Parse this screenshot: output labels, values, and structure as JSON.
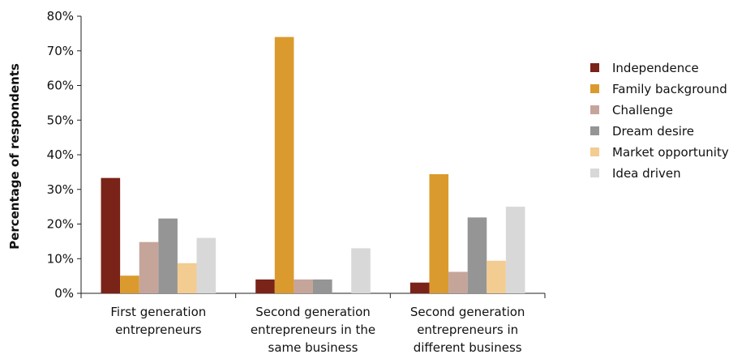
{
  "chart_data": {
    "type": "bar",
    "title": "",
    "xlabel": "",
    "ylabel": "Percentage of respondents",
    "ylim": [
      0,
      80
    ],
    "yticks": [
      "0%",
      "10%",
      "20%",
      "30%",
      "40%",
      "50%",
      "60%",
      "70%",
      "80%"
    ],
    "ytick_values": [
      0,
      10,
      20,
      30,
      40,
      50,
      60,
      70,
      80
    ],
    "grid": false,
    "legend_position": "right",
    "categories": [
      [
        "First generation",
        "entrepreneurs"
      ],
      [
        "Second generation",
        "entrepreneurs in the",
        "same business"
      ],
      [
        "Second generation",
        "entrepreneurs in",
        "different business"
      ]
    ],
    "series": [
      {
        "name": "Independence",
        "color": "#7a2318",
        "values": [
          33.3,
          4.0,
          3.1
        ]
      },
      {
        "name": "Family background",
        "color": "#db9a2d",
        "values": [
          5.1,
          74.0,
          34.4
        ]
      },
      {
        "name": "Challenge",
        "color": "#c5a59a",
        "values": [
          14.8,
          4.0,
          6.2
        ]
      },
      {
        "name": "Dream desire",
        "color": "#959595",
        "values": [
          21.6,
          4.0,
          21.9
        ]
      },
      {
        "name": "Market opportunity",
        "color": "#f3cc92",
        "values": [
          8.7,
          0,
          9.4
        ]
      },
      {
        "name": "Idea driven",
        "color": "#d8d8d8",
        "values": [
          16.0,
          13.0,
          25.0
        ]
      }
    ]
  }
}
